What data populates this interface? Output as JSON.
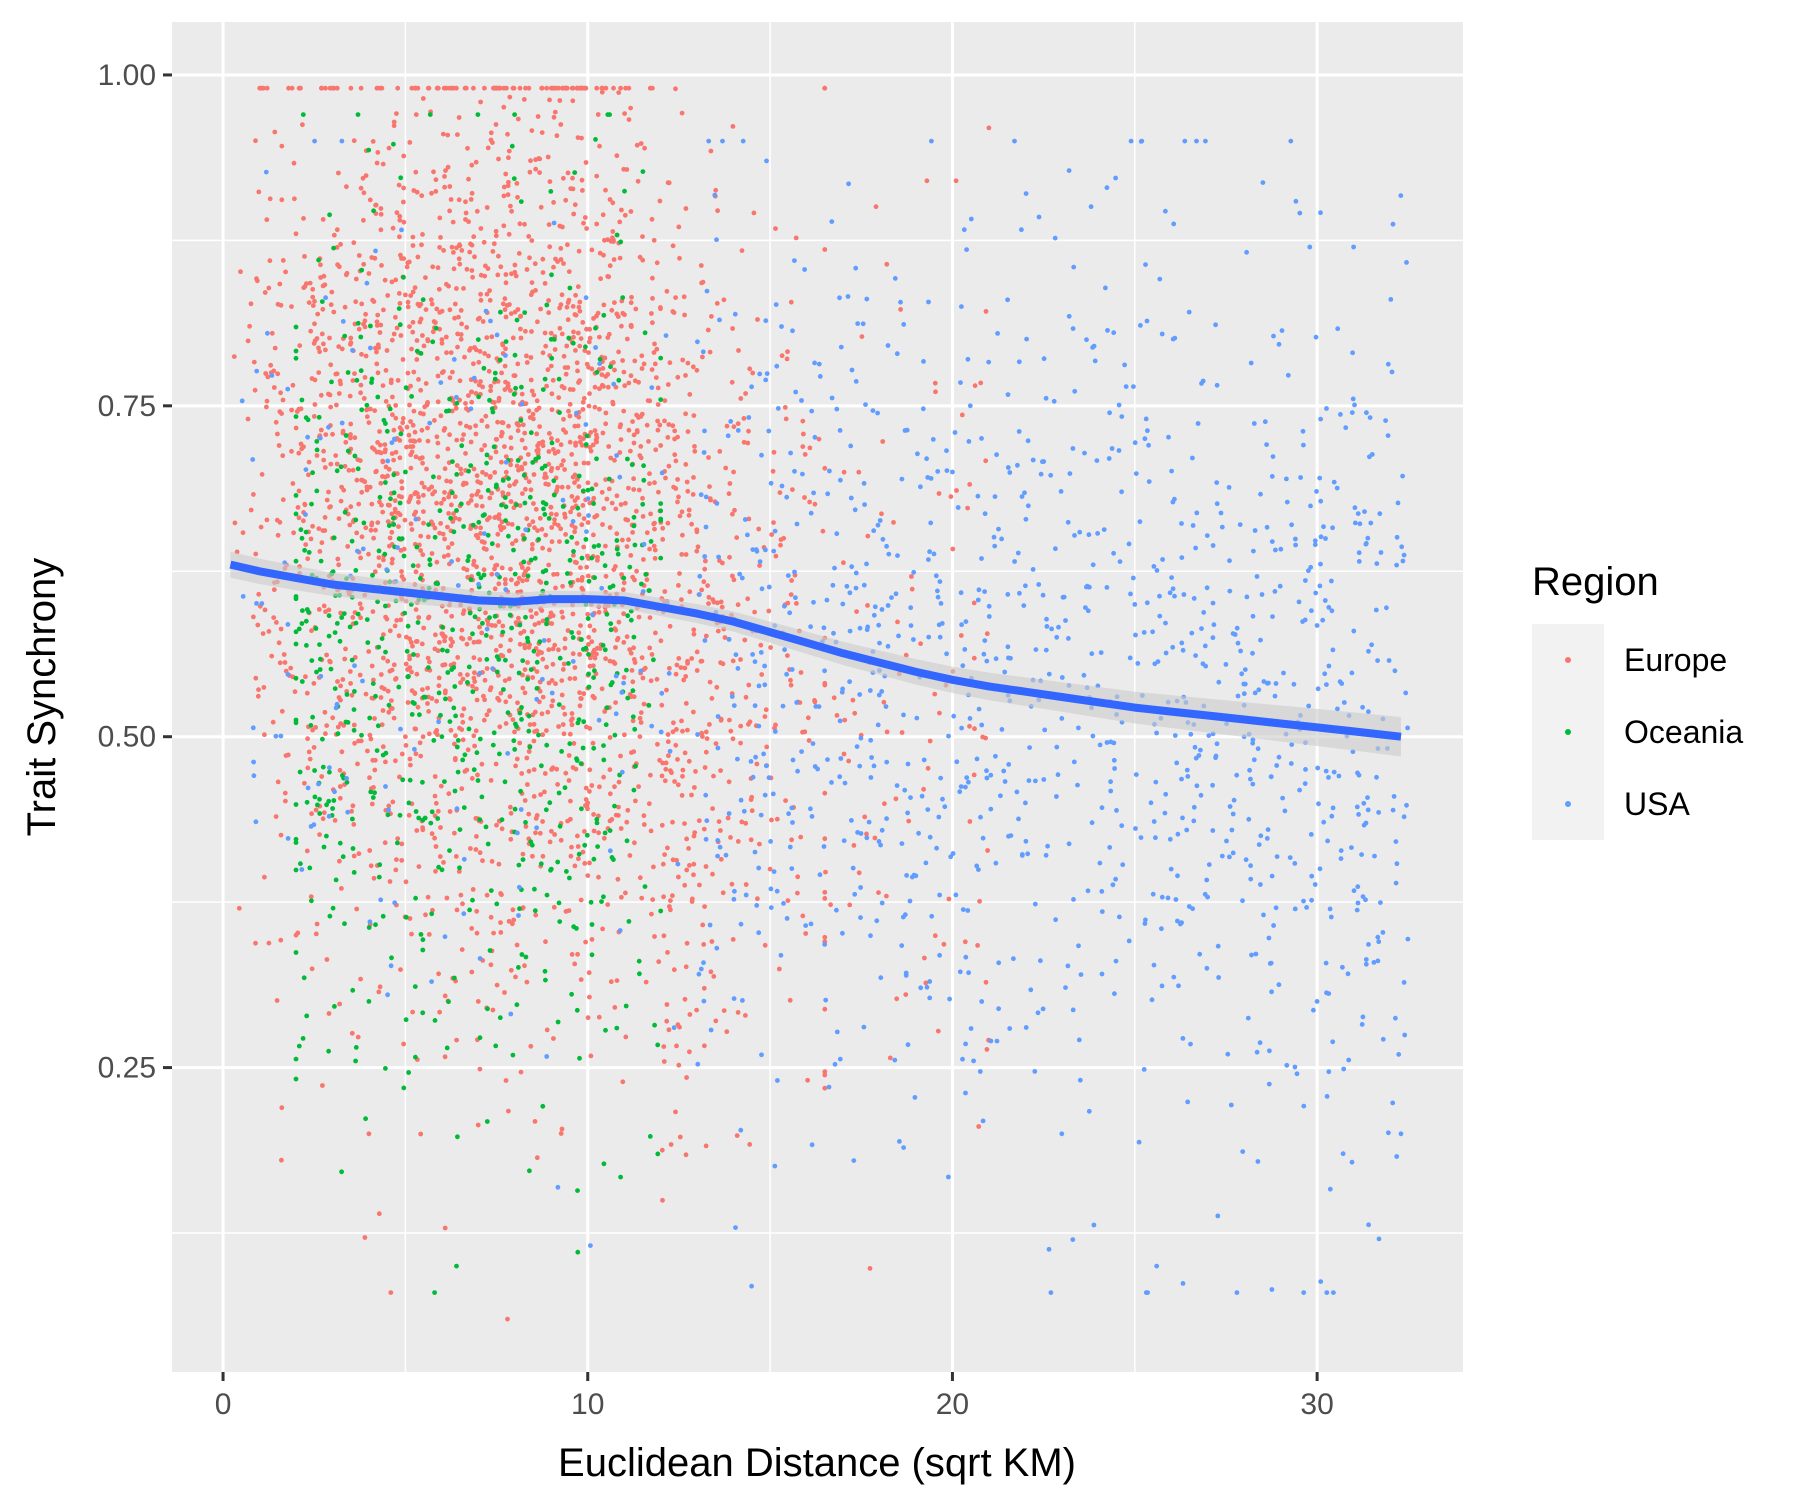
{
  "chart_data": {
    "type": "scatter",
    "title": "",
    "xlabel": "Euclidean Distance (sqrt KM)",
    "ylabel": "Trait Synchrony",
    "xlim": [
      -1.4,
      34
    ],
    "ylim": [
      0.02,
      1.04
    ],
    "x_ticks": [
      0,
      10,
      20,
      30
    ],
    "x_tick_labels": [
      "0",
      "10",
      "20",
      "30"
    ],
    "y_ticks": [
      0.25,
      0.5,
      0.75,
      1.0
    ],
    "y_tick_labels": [
      "0.25",
      "0.50",
      "0.75",
      "1.00"
    ],
    "grid": true,
    "background": "#ebebeb",
    "legend": {
      "title": "Region",
      "position": "right"
    },
    "series": [
      {
        "name": "Europe",
        "color": "#f8766d",
        "x_range": [
          0.2,
          21
        ],
        "y_range": [
          0.06,
          0.99
        ],
        "point_count": 3000,
        "sample_points": [
          [
            7.7,
            0.99
          ],
          [
            5.3,
            0.97
          ],
          [
            21.0,
            0.96
          ],
          [
            19.3,
            0.92
          ],
          [
            20.1,
            0.92
          ],
          [
            2.0,
            0.88
          ],
          [
            4.0,
            0.85
          ],
          [
            6.0,
            0.8
          ],
          [
            9.0,
            0.78
          ],
          [
            12.0,
            0.72
          ],
          [
            14.0,
            0.7
          ],
          [
            3.0,
            0.65
          ],
          [
            8.0,
            0.6
          ],
          [
            13.0,
            0.55
          ],
          [
            5.0,
            0.5
          ],
          [
            10.0,
            0.45
          ],
          [
            15.0,
            0.4
          ],
          [
            2.0,
            0.35
          ],
          [
            7.0,
            0.3
          ],
          [
            4.0,
            0.2
          ],
          [
            1.6,
            0.18
          ],
          [
            4.6,
            0.08
          ],
          [
            7.8,
            0.06
          ]
        ]
      },
      {
        "name": "Oceania",
        "color": "#00ba38",
        "x_range": [
          2,
          12
        ],
        "y_range": [
          0.08,
          0.97
        ],
        "point_count": 700,
        "sample_points": [
          [
            2.2,
            0.97
          ],
          [
            3.7,
            0.97
          ],
          [
            10.6,
            0.97
          ],
          [
            7.0,
            0.8
          ],
          [
            5.0,
            0.7
          ],
          [
            8.0,
            0.6
          ],
          [
            6.0,
            0.5
          ],
          [
            9.0,
            0.4
          ],
          [
            4.0,
            0.3
          ],
          [
            6.4,
            0.1
          ],
          [
            5.8,
            0.08
          ]
        ]
      },
      {
        "name": "USA",
        "color": "#619cff",
        "x_range": [
          0.5,
          32.5
        ],
        "y_range": [
          0.08,
          0.95
        ],
        "point_count": 1300,
        "sample_points": [
          [
            24.9,
            0.95
          ],
          [
            29.8,
            0.87
          ],
          [
            31.0,
            0.87
          ],
          [
            20.0,
            0.7
          ],
          [
            25.0,
            0.6
          ],
          [
            18.0,
            0.55
          ],
          [
            28.0,
            0.5
          ],
          [
            22.0,
            0.45
          ],
          [
            26.0,
            0.4
          ],
          [
            30.0,
            0.3
          ],
          [
            23.0,
            0.2
          ],
          [
            32.3,
            0.2
          ],
          [
            23.3,
            0.12
          ],
          [
            25.6,
            0.1
          ],
          [
            27.8,
            0.08
          ]
        ]
      }
    ],
    "smooth": {
      "color": "#3366ff",
      "se_color": "#cccccc",
      "x": [
        0.2,
        1,
        2,
        3,
        4,
        5,
        6,
        7,
        8,
        9,
        10,
        11,
        12,
        13,
        14,
        15,
        16,
        17,
        18,
        19,
        20,
        21,
        22,
        23,
        24,
        25,
        26,
        27,
        28,
        29,
        30,
        31,
        32.3
      ],
      "y": [
        0.63,
        0.625,
        0.62,
        0.615,
        0.612,
        0.609,
        0.606,
        0.603,
        0.602,
        0.604,
        0.604,
        0.603,
        0.598,
        0.593,
        0.587,
        0.579,
        0.571,
        0.563,
        0.556,
        0.549,
        0.543,
        0.538,
        0.534,
        0.53,
        0.526,
        0.522,
        0.519,
        0.516,
        0.513,
        0.51,
        0.507,
        0.504,
        0.5
      ]
    }
  }
}
